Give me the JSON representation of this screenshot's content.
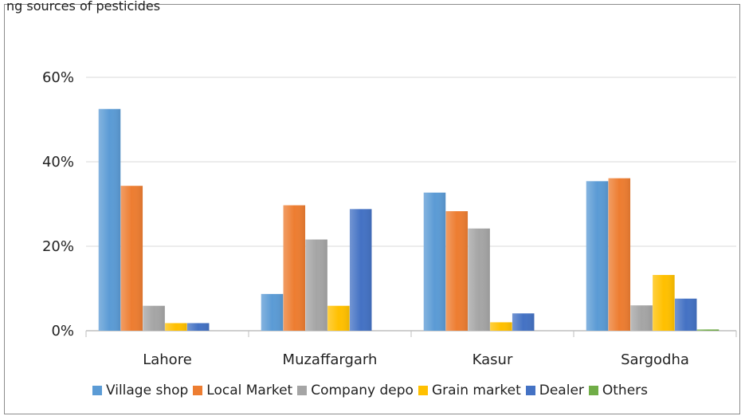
{
  "header_cut_text": "ng sources of pesticides",
  "chart_data": {
    "type": "bar",
    "categories": [
      "Lahore",
      "Muzaffargarh",
      "Kasur",
      "Sargodha"
    ],
    "series": [
      {
        "name": "Village shop",
        "color": "#5b9bd5",
        "values": [
          52.5,
          8.7,
          32.7,
          35.4
        ]
      },
      {
        "name": "Local Market",
        "color": "#ed7d31",
        "values": [
          34.3,
          29.7,
          28.3,
          36.1
        ]
      },
      {
        "name": "Company depo",
        "color": "#a5a5a5",
        "values": [
          5.9,
          21.6,
          24.2,
          6.0
        ]
      },
      {
        "name": "Grain market",
        "color": "#ffc000",
        "values": [
          1.8,
          5.9,
          2.0,
          13.2
        ]
      },
      {
        "name": "Dealer",
        "color": "#4472c4",
        "values": [
          1.8,
          28.8,
          4.1,
          7.6
        ]
      },
      {
        "name": "Others",
        "color": "#70ad47",
        "values": [
          0.0,
          0.0,
          0.0,
          0.3
        ]
      }
    ],
    "yticks": [
      "0%",
      "20%",
      "40%",
      "60%"
    ],
    "ylim": [
      0,
      60
    ],
    "grid": true,
    "legend_position": "bottom"
  }
}
